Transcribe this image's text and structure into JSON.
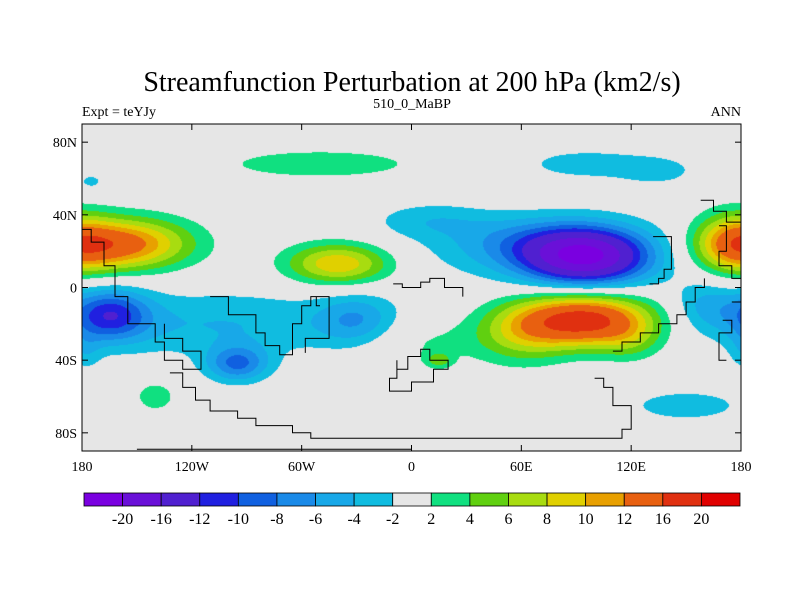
{
  "chart_data": {
    "type": "heatmap",
    "title": "Streamfunction Perturbation at 200 hPa (km2/s)",
    "left_string": "Expt = teYJy",
    "center_string": "510_0_MaBP",
    "right_string": "ANN",
    "xlim": [
      -180,
      180
    ],
    "ylim": [
      -90,
      90
    ],
    "x_ticks": [
      {
        "value": -180,
        "label": "180"
      },
      {
        "value": -120,
        "label": "120W"
      },
      {
        "value": -60,
        "label": "60W"
      },
      {
        "value": 0,
        "label": "0"
      },
      {
        "value": 60,
        "label": "60E"
      },
      {
        "value": 120,
        "label": "120E"
      },
      {
        "value": 180,
        "label": "180"
      }
    ],
    "y_ticks": [
      {
        "value": 80,
        "label": "80N"
      },
      {
        "value": 40,
        "label": "40N"
      },
      {
        "value": 0,
        "label": "0"
      },
      {
        "value": -40,
        "label": "40S"
      },
      {
        "value": -80,
        "label": "80S"
      }
    ],
    "levels": [
      -20,
      -16,
      -12,
      -10,
      -8,
      -6,
      -4,
      -2,
      2,
      4,
      6,
      8,
      10,
      12,
      16,
      20
    ],
    "level_labels": [
      "-20",
      "-16",
      "-12",
      "-10",
      "-8",
      "-6",
      "-4",
      "-2",
      "2",
      "4",
      "6",
      "8",
      "10",
      "12",
      "16",
      "20"
    ],
    "colors": [
      "#7a00e0",
      "#6a10d8",
      "#5020d0",
      "#2020e0",
      "#1060e0",
      "#1a8ae8",
      "#18a8e8",
      "#10bce0",
      "#e6e6e6",
      "#10e080",
      "#60d010",
      "#a8dc10",
      "#e0d000",
      "#e8a000",
      "#e86010",
      "#e03010",
      "#e00000"
    ],
    "features": [
      {
        "lon": 95,
        "lat": 17,
        "slon": 24,
        "slat": 11,
        "amp": -19
      },
      {
        "lon": 60,
        "lat": 25,
        "slon": 30,
        "slat": 10,
        "amp": -4
      },
      {
        "lon": 10,
        "lat": 37,
        "slon": 22,
        "slat": 7,
        "amp": -3
      },
      {
        "lon": 95,
        "lat": 68,
        "slon": 25,
        "slat": 6,
        "amp": -3.2
      },
      {
        "lon": 135,
        "lat": 64,
        "slon": 16,
        "slat": 6,
        "amp": -2.6
      },
      {
        "lon": -175,
        "lat": 58,
        "slon": 8,
        "slat": 5,
        "amp": -2.4
      },
      {
        "lon": 70,
        "lat": 20,
        "slon": 55,
        "slat": 14,
        "amp": -2
      },
      {
        "lon": 95,
        "lat": -18,
        "slon": 25,
        "slat": 10,
        "amp": 18
      },
      {
        "lon": 60,
        "lat": -25,
        "slon": 18,
        "slat": 12,
        "amp": 6
      },
      {
        "lon": 120,
        "lat": -30,
        "slon": 12,
        "slat": 8,
        "amp": 3
      },
      {
        "lon": 5,
        "lat": -30,
        "slon": 25,
        "slat": 10,
        "amp": 2.5
      },
      {
        "lon": 160,
        "lat": -10,
        "slon": 12,
        "slat": 10,
        "amp": -4
      },
      {
        "lon": -155,
        "lat": 24,
        "slon": 25,
        "slat": 10,
        "amp": 12
      },
      {
        "lon": -180,
        "lat": 22,
        "slon": 20,
        "slat": 10,
        "amp": 4
      },
      {
        "lon": -40,
        "lat": 13,
        "slon": 20,
        "slat": 8,
        "amp": 10
      },
      {
        "lon": -50,
        "lat": 68,
        "slon": 40,
        "slat": 6,
        "amp": 3.5
      },
      {
        "lon": 175,
        "lat": 25,
        "slon": 14,
        "slat": 12,
        "amp": 7
      },
      {
        "lon": -140,
        "lat": -60,
        "slon": 8,
        "slat": 6,
        "amp": 3.5
      },
      {
        "lon": 15,
        "lat": -40,
        "slon": 5,
        "slat": 3,
        "amp": 4.5
      },
      {
        "lon": -165,
        "lat": -15,
        "slon": 15,
        "slat": 10,
        "amp": -10
      },
      {
        "lon": -105,
        "lat": -20,
        "slon": 60,
        "slat": 13,
        "amp": -4
      },
      {
        "lon": -95,
        "lat": -42,
        "slon": 12,
        "slat": 7,
        "amp": -8
      },
      {
        "lon": -30,
        "lat": -18,
        "slon": 15,
        "slat": 10,
        "amp": -5
      },
      {
        "lon": 150,
        "lat": -65,
        "slon": 22,
        "slat": 6,
        "amp": -3.5
      },
      {
        "lon": -178,
        "lat": -35,
        "slon": 6,
        "slat": 8,
        "amp": -2.5
      }
    ],
    "coastlines": [
      [
        [
          -180,
          32
        ],
        [
          -175,
          32
        ],
        [
          -175,
          25
        ],
        [
          -168,
          25
        ],
        [
          -168,
          12
        ],
        [
          -162,
          12
        ],
        [
          -162,
          -5
        ],
        [
          -155,
          -5
        ],
        [
          -155,
          -20
        ],
        [
          -140,
          -20
        ],
        [
          -140,
          -30
        ],
        [
          -135,
          -30
        ],
        [
          -135,
          -40
        ],
        [
          -125,
          -40
        ],
        [
          -125,
          -45
        ],
        [
          -115,
          -45
        ],
        [
          -115,
          -35
        ],
        [
          -125,
          -35
        ],
        [
          -125,
          -28
        ],
        [
          -135,
          -28
        ],
        [
          -135,
          -20
        ]
      ],
      [
        [
          -110,
          -5
        ],
        [
          -100,
          -5
        ],
        [
          -100,
          -15
        ],
        [
          -85,
          -15
        ],
        [
          -85,
          -25
        ],
        [
          -80,
          -25
        ],
        [
          -80,
          -32
        ],
        [
          -72,
          -32
        ],
        [
          -72,
          -37
        ],
        [
          -65,
          -37
        ],
        [
          -65,
          -20
        ],
        [
          -60,
          -20
        ],
        [
          -60,
          -10
        ],
        [
          -55,
          -10
        ],
        [
          -55,
          -5
        ],
        [
          -45,
          -5
        ],
        [
          -45,
          -28
        ],
        [
          -58,
          -28
        ],
        [
          -58,
          -36
        ]
      ],
      [
        [
          -52,
          -5
        ],
        [
          -52,
          -10
        ],
        [
          -50,
          -10
        ]
      ],
      [
        [
          -132,
          -47
        ],
        [
          -125,
          -47
        ],
        [
          -125,
          -55
        ],
        [
          -118,
          -55
        ],
        [
          -118,
          -62
        ],
        [
          -110,
          -62
        ],
        [
          -110,
          -68
        ],
        [
          -95,
          -68
        ],
        [
          -95,
          -72
        ],
        [
          -85,
          -72
        ],
        [
          -85,
          -76
        ],
        [
          -65,
          -76
        ],
        [
          -65,
          -80
        ],
        [
          -55,
          -80
        ],
        [
          -55,
          -83
        ],
        [
          115,
          -83
        ],
        [
          115,
          -78
        ],
        [
          120,
          -78
        ],
        [
          120,
          -65
        ],
        [
          110,
          -65
        ],
        [
          110,
          -55
        ],
        [
          105,
          -55
        ],
        [
          105,
          -50
        ],
        [
          100,
          -50
        ]
      ],
      [
        [
          -150,
          -89
        ],
        [
          0,
          -89
        ],
        [
          0,
          -87
        ]
      ],
      [
        [
          -10,
          2
        ],
        [
          -5,
          2
        ],
        [
          -5,
          0
        ],
        [
          5,
          0
        ],
        [
          5,
          3
        ],
        [
          10,
          3
        ],
        [
          10,
          5
        ],
        [
          18,
          5
        ],
        [
          18,
          0
        ],
        [
          28,
          0
        ],
        [
          28,
          -5
        ]
      ],
      [
        [
          -8,
          -40
        ],
        [
          -8,
          -50
        ],
        [
          -12,
          -50
        ],
        [
          -12,
          -57
        ],
        [
          0,
          -57
        ],
        [
          0,
          -52
        ],
        [
          12,
          -52
        ],
        [
          12,
          -45
        ],
        [
          20,
          -45
        ],
        [
          20,
          -40
        ],
        [
          10,
          -40
        ],
        [
          10,
          -34
        ],
        [
          5,
          -34
        ],
        [
          5,
          -38
        ],
        [
          -2,
          -38
        ],
        [
          -2,
          -45
        ],
        [
          -8,
          -45
        ]
      ],
      [
        [
          132,
          28
        ],
        [
          142,
          28
        ],
        [
          142,
          10
        ],
        [
          138,
          10
        ],
        [
          138,
          5
        ],
        [
          135,
          5
        ],
        [
          135,
          2
        ],
        [
          130,
          2
        ]
      ],
      [
        [
          110,
          -35
        ],
        [
          115,
          -35
        ],
        [
          115,
          -30
        ],
        [
          125,
          -30
        ],
        [
          125,
          -25
        ],
        [
          135,
          -25
        ],
        [
          135,
          -20
        ],
        [
          145,
          -20
        ],
        [
          145,
          -15
        ],
        [
          150,
          -15
        ],
        [
          150,
          -8
        ],
        [
          155,
          -8
        ],
        [
          155,
          0
        ],
        [
          160,
          0
        ],
        [
          160,
          5
        ]
      ],
      [
        [
          158,
          48
        ],
        [
          165,
          48
        ],
        [
          165,
          42
        ],
        [
          172,
          42
        ],
        [
          172,
          36
        ],
        [
          180,
          36
        ]
      ],
      [
        [
          168,
          34
        ],
        [
          172,
          34
        ],
        [
          172,
          20
        ],
        [
          168,
          20
        ],
        [
          168,
          12
        ],
        [
          175,
          12
        ],
        [
          175,
          5
        ],
        [
          180,
          5
        ]
      ],
      [
        [
          175,
          -8
        ],
        [
          180,
          -8
        ]
      ],
      [
        [
          170,
          -18
        ],
        [
          175,
          -18
        ],
        [
          175,
          -25
        ],
        [
          168,
          -25
        ],
        [
          168,
          -40
        ],
        [
          172,
          -40
        ]
      ]
    ]
  }
}
